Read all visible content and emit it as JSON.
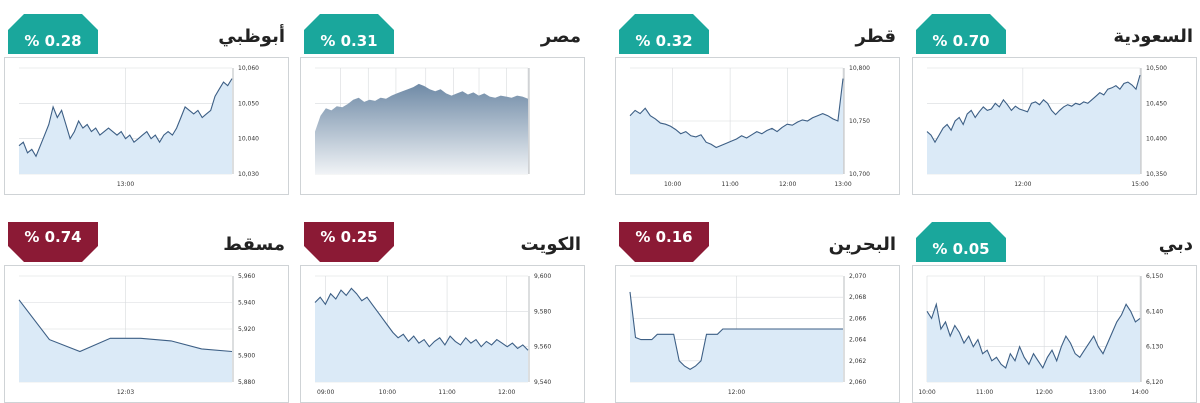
{
  "markets": [
    {
      "name": "السعودية",
      "change": "% 0.70",
      "direction": "up",
      "chart_data": {
        "type": "area",
        "style": "line",
        "y_ticks": [
          "10,500",
          "10,450",
          "10,400",
          "10,350"
        ],
        "ylim": [
          10350,
          10500
        ],
        "x_ticks": [
          "12:00",
          "15:00"
        ],
        "x_tick_pos": [
          0.45,
          1.0
        ],
        "series": [
          {
            "values": [
              10410,
              10405,
              10395,
              10405,
              10415,
              10420,
              10412,
              10425,
              10430,
              10420,
              10435,
              10440,
              10430,
              10438,
              10445,
              10440,
              10442,
              10450,
              10445,
              10455,
              10448,
              10440,
              10446,
              10442,
              10440,
              10438,
              10450,
              10452,
              10448,
              10455,
              10450,
              10440,
              10434,
              10440,
              10445,
              10448,
              10446,
              10450,
              10448,
              10452,
              10450,
              10455,
              10460,
              10465,
              10462,
              10470,
              10472,
              10475,
              10470,
              10478,
              10480,
              10476,
              10470,
              10490
            ]
          }
        ]
      }
    },
    {
      "name": "قطر",
      "change": "% 0.32",
      "direction": "up",
      "chart_data": {
        "type": "area",
        "style": "line",
        "y_ticks": [
          "10,800",
          "10,750",
          "10,700"
        ],
        "ylim": [
          10700,
          10800
        ],
        "x_ticks": [
          "10:00",
          "11:00",
          "12:00",
          "13:00"
        ],
        "x_tick_pos": [
          0.2,
          0.47,
          0.74,
          1.0
        ],
        "series": [
          {
            "values": [
              10755,
              10760,
              10757,
              10762,
              10755,
              10752,
              10748,
              10747,
              10745,
              10742,
              10738,
              10740,
              10736,
              10735,
              10737,
              10730,
              10728,
              10725,
              10727,
              10729,
              10731,
              10733,
              10736,
              10734,
              10737,
              10740,
              10738,
              10741,
              10743,
              10740,
              10744,
              10747,
              10746,
              10749,
              10751,
              10750,
              10753,
              10755,
              10757,
              10755,
              10752,
              10750,
              10790
            ]
          }
        ]
      }
    },
    {
      "name": "مصر",
      "change": "% 0.31",
      "direction": "up",
      "chart_data": {
        "type": "area",
        "style": "gradient",
        "y_ticks": [
          "",
          "",
          "",
          ""
        ],
        "ylim": [
          0,
          1
        ],
        "x_ticks": [
          "",
          "",
          "",
          "",
          "",
          "",
          "",
          ""
        ],
        "x_tick_pos": [
          0.12,
          0.25,
          0.38,
          0.52,
          0.65,
          0.77,
          0.9,
          1.0
        ],
        "series": [
          {
            "values": [
              0.4,
              0.55,
              0.62,
              0.6,
              0.64,
              0.63,
              0.66,
              0.7,
              0.72,
              0.68,
              0.7,
              0.69,
              0.72,
              0.71,
              0.74,
              0.76,
              0.78,
              0.8,
              0.82,
              0.85,
              0.83,
              0.8,
              0.78,
              0.8,
              0.76,
              0.74,
              0.76,
              0.78,
              0.75,
              0.77,
              0.74,
              0.76,
              0.73,
              0.72,
              0.74,
              0.73,
              0.72,
              0.74,
              0.73,
              0.71
            ]
          }
        ]
      }
    },
    {
      "name": "أبوظبي",
      "change": "% 0.28",
      "direction": "up",
      "chart_data": {
        "type": "area",
        "style": "line",
        "y_ticks": [
          "10,060",
          "10,050",
          "10,040",
          "10,030"
        ],
        "ylim": [
          10030,
          10060
        ],
        "x_ticks": [
          "13:00"
        ],
        "x_tick_pos": [
          0.5
        ],
        "series": [
          {
            "values": [
              10038,
              10039,
              10036,
              10037,
              10035,
              10038,
              10041,
              10044,
              10049,
              10046,
              10048,
              10044,
              10040,
              10042,
              10045,
              10043,
              10044,
              10042,
              10043,
              10041,
              10042,
              10043,
              10042,
              10041,
              10042,
              10040,
              10041,
              10039,
              10040,
              10041,
              10042,
              10040,
              10041,
              10039,
              10041,
              10042,
              10041,
              10043,
              10046,
              10049,
              10048,
              10047,
              10048,
              10046,
              10047,
              10048,
              10052,
              10054,
              10056,
              10055,
              10057
            ]
          }
        ]
      }
    },
    {
      "name": "دبي",
      "change": "% 0.05",
      "direction": "up",
      "chart_data": {
        "type": "area",
        "style": "line",
        "y_ticks": [
          "6,150",
          "6,140",
          "6,130",
          "6,120"
        ],
        "ylim": [
          6120,
          6150
        ],
        "x_ticks": [
          "10:00",
          "11:00",
          "12:00",
          "13:00",
          "14:00"
        ],
        "x_tick_pos": [
          0.0,
          0.27,
          0.55,
          0.8,
          1.0
        ],
        "series": [
          {
            "values": [
              6140,
              6138,
              6142,
              6135,
              6137,
              6133,
              6136,
              6134,
              6131,
              6133,
              6130,
              6132,
              6128,
              6129,
              6126,
              6127,
              6125,
              6124,
              6128,
              6126,
              6130,
              6127,
              6125,
              6128,
              6126,
              6124,
              6127,
              6129,
              6126,
              6130,
              6133,
              6131,
              6128,
              6127,
              6129,
              6131,
              6133,
              6130,
              6128,
              6131,
              6134,
              6137,
              6139,
              6142,
              6140,
              6137,
              6138
            ]
          }
        ]
      }
    },
    {
      "name": "البحرين",
      "change": "% 0.16",
      "direction": "down",
      "chart_data": {
        "type": "area",
        "style": "line",
        "y_ticks": [
          "2,070",
          "2,068",
          "2,066",
          "2,064",
          "2,062",
          "2,060"
        ],
        "ylim": [
          2060,
          2070
        ],
        "x_ticks": [
          "12:00"
        ],
        "x_tick_pos": [
          0.5
        ],
        "series": [
          {
            "values": [
              2068.5,
              2064.2,
              2064.0,
              2064.0,
              2064.0,
              2064.5,
              2064.5,
              2064.5,
              2064.5,
              2062.0,
              2061.5,
              2061.2,
              2061.5,
              2062.0,
              2064.5,
              2064.5,
              2064.5,
              2065.0,
              2065.0,
              2065.0,
              2065.0,
              2065.0,
              2065.0,
              2065.0,
              2065.0,
              2065.0,
              2065.0,
              2065.0,
              2065.0,
              2065.0,
              2065.0,
              2065.0,
              2065.0,
              2065.0,
              2065.0,
              2065.0,
              2065.0,
              2065.0,
              2065.0,
              2065.0
            ]
          }
        ]
      }
    },
    {
      "name": "الكويت",
      "change": "% 0.25",
      "direction": "down",
      "chart_data": {
        "type": "area",
        "style": "line",
        "y_ticks": [
          "9,600",
          "9,580",
          "9,560",
          "9,540"
        ],
        "ylim": [
          9540,
          9600
        ],
        "x_ticks": [
          "09:00",
          "10:00",
          "11:00",
          "12:00"
        ],
        "x_tick_pos": [
          0.05,
          0.34,
          0.62,
          0.9
        ],
        "series": [
          {
            "values": [
              9585,
              9588,
              9584,
              9590,
              9587,
              9592,
              9589,
              9593,
              9590,
              9586,
              9588,
              9584,
              9580,
              9576,
              9572,
              9568,
              9565,
              9567,
              9563,
              9566,
              9562,
              9564,
              9560,
              9563,
              9565,
              9561,
              9566,
              9563,
              9561,
              9565,
              9562,
              9564,
              9560,
              9563,
              9561,
              9564,
              9562,
              9560,
              9562,
              9559,
              9561,
              9558
            ]
          }
        ]
      }
    },
    {
      "name": "مسقط",
      "change": "% 0.74",
      "direction": "down",
      "chart_data": {
        "type": "area",
        "style": "line",
        "y_ticks": [
          "5,960",
          "5,940",
          "5,920",
          "5,900",
          "5,880"
        ],
        "ylim": [
          5880,
          5960
        ],
        "x_ticks": [
          "12:03"
        ],
        "x_tick_pos": [
          0.5
        ],
        "series": [
          {
            "values": [
              5942,
              5912,
              5903,
              5913,
              5913,
              5911,
              5905,
              5903
            ]
          }
        ]
      }
    }
  ],
  "colors": {
    "up": "#1aa79c",
    "down": "#8b1a35",
    "fill": "#dbeaf7",
    "line": "#3d5f85",
    "grid": "#d7dadd"
  }
}
